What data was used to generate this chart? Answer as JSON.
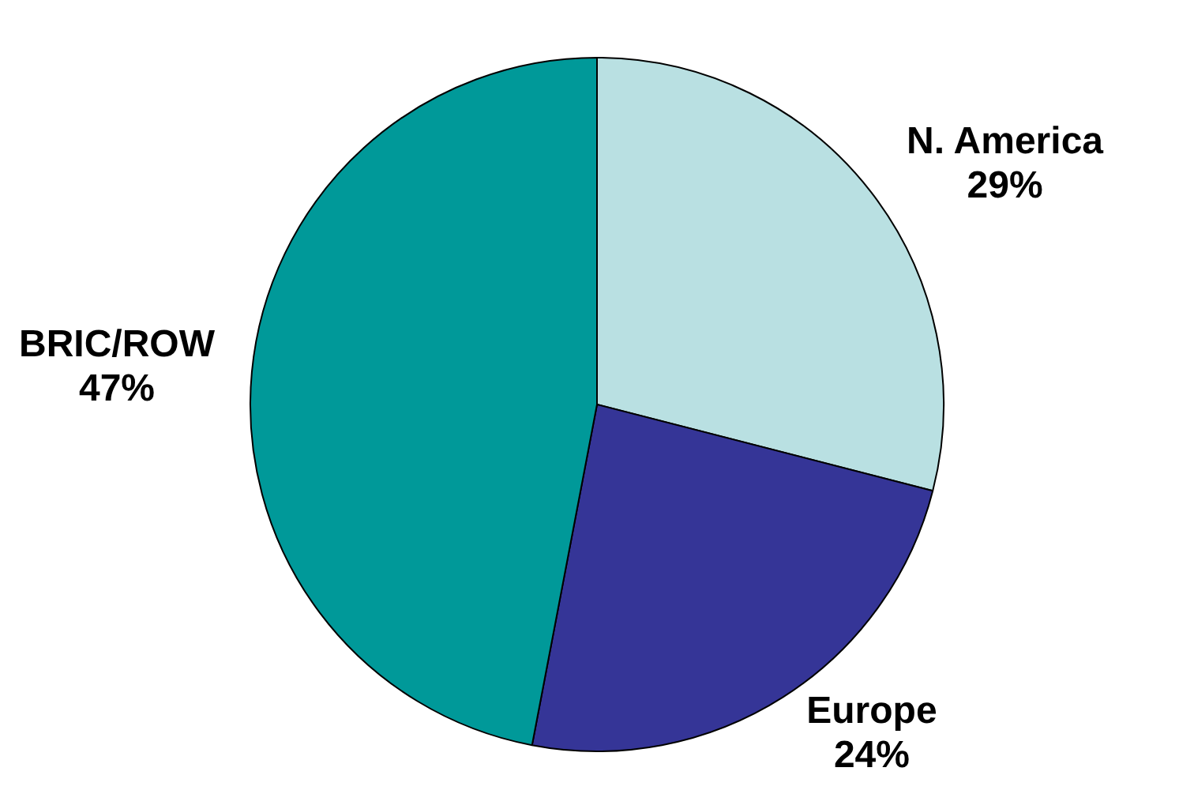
{
  "chart_data": {
    "type": "pie",
    "categories": [
      "N. America",
      "Europe",
      "BRIC/ROW"
    ],
    "values": [
      29,
      24,
      47
    ],
    "value_labels": [
      "29%",
      "24%",
      "47%"
    ],
    "colors": [
      "#b9e0e2",
      "#353597",
      "#009999"
    ],
    "legend": false
  }
}
